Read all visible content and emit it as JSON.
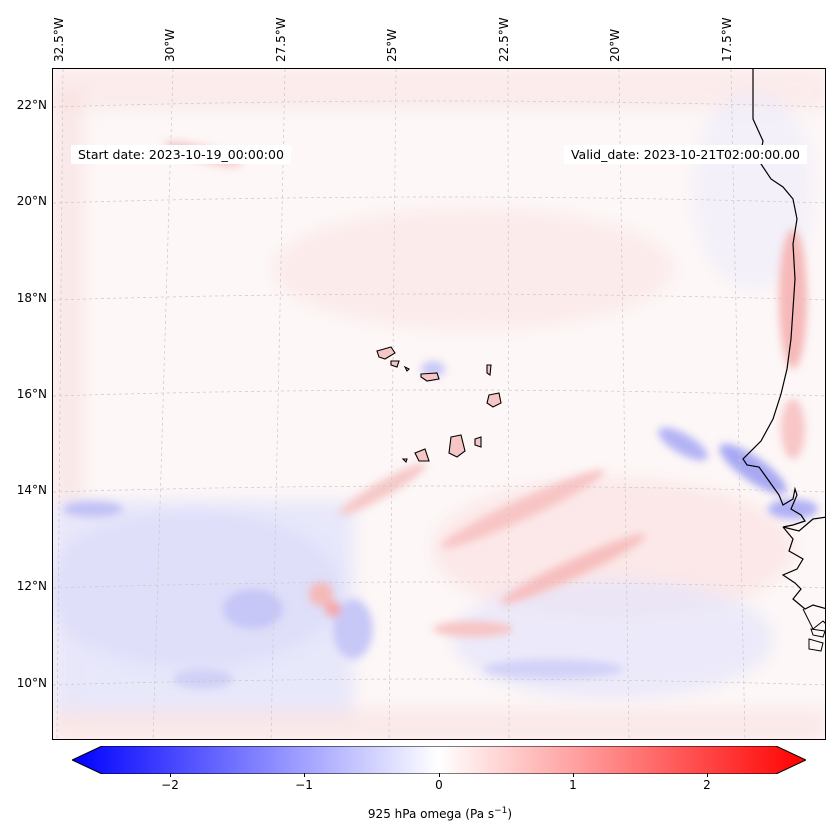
{
  "map": {
    "start_date": "Start date: 2023-10-19_00:00:00",
    "valid_date": "Valid_date: 2023-10-21T02:00:00.00",
    "lon_labels": [
      "32.5°W",
      "30°W",
      "27.5°W",
      "25°W",
      "22.5°W",
      "20°W",
      "17.5°W"
    ],
    "lat_labels": [
      "22°N",
      "20°N",
      "18°N",
      "16°N",
      "14°N",
      "12°N",
      "10°N"
    ],
    "colors": {
      "positive": "#ff0000",
      "negative": "#0000ff",
      "coast": "#000000"
    }
  },
  "colorbar": {
    "ticks": [
      "−2",
      "−1",
      "0",
      "1",
      "2"
    ],
    "label_text": "925 hPa omega (Pa s",
    "label_unit_exp": "−1",
    "label_close": ")",
    "range": [
      -2.6,
      2.6
    ]
  }
}
